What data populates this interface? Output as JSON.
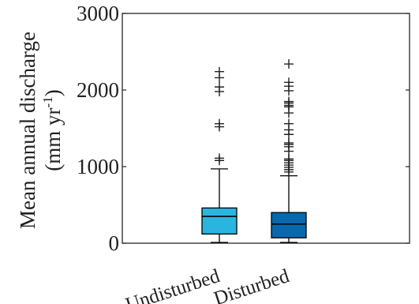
{
  "chart_data": {
    "type": "box",
    "ylabel": "Mean annual discharge",
    "ylabel_units_prefix": "(mm yr",
    "ylabel_units_exp": "-1",
    "ylabel_units_suffix": ")",
    "ylim": [
      0,
      3000
    ],
    "yticks": [
      0,
      1000,
      2000,
      3000
    ],
    "ytick_labels": [
      "0",
      "1000",
      "2000",
      "3000"
    ],
    "categories": [
      "Undisturbed",
      "Disturbed"
    ],
    "boxes": [
      {
        "name": "Undisturbed",
        "color": "#29B5E0",
        "whisker_low": 10,
        "q1": 120,
        "median": 350,
        "q3": 460,
        "whisker_high": 970,
        "outliers": [
          1080,
          1110,
          1520,
          1560,
          1980,
          2040,
          2160,
          2240
        ]
      },
      {
        "name": "Disturbed",
        "color": "#0868AC",
        "whisker_low": 10,
        "q1": 70,
        "median": 250,
        "q3": 400,
        "whisker_high": 880,
        "outliers": [
          930,
          960,
          990,
          1020,
          1050,
          1080,
          1100,
          1200,
          1260,
          1290,
          1310,
          1420,
          1480,
          1560,
          1700,
          1780,
          1800,
          1830,
          1850,
          1990,
          2050,
          2100,
          2340
        ]
      }
    ],
    "grid": false,
    "legend": "none"
  }
}
